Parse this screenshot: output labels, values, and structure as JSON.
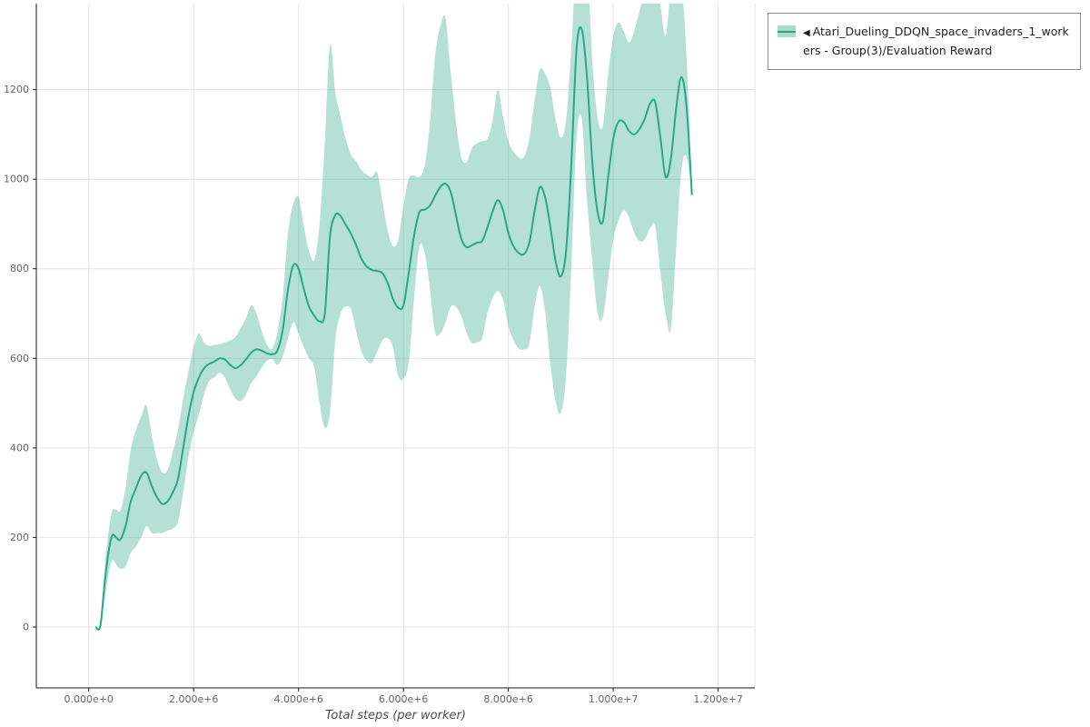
{
  "legend": {
    "marker": "◀",
    "label": "Atari_Dueling_DDQN_space_invaders_1_workers - Group(3)/Evaluation Reward"
  },
  "chart_data": {
    "type": "line",
    "title": "",
    "xlabel": "Total steps (per worker)",
    "ylabel": "",
    "grid": true,
    "legend_position": "top-right",
    "xlim": [
      -1000000,
      12700000
    ],
    "ylim": [
      -136,
      1392
    ],
    "xticks": {
      "values": [
        0,
        2000000,
        4000000,
        6000000,
        8000000,
        10000000,
        12000000
      ],
      "labels": [
        "0.000e+0",
        "2.000e+6",
        "4.000e+6",
        "6.000e+6",
        "8.000e+6",
        "1.000e+7",
        "1.200e+7"
      ]
    },
    "yticks": {
      "values": [
        0,
        200,
        400,
        600,
        800,
        1000,
        1200
      ],
      "labels": [
        "0",
        "200",
        "400",
        "600",
        "800",
        "1000",
        "1200"
      ]
    },
    "colors": {
      "line": "#29a884",
      "band": "#29a884",
      "band_opacity": 0.35,
      "band_solid": "#aadcc8",
      "grid": "#e4e4e4",
      "spine": "#1a1a1a",
      "tick_text": "#666666"
    },
    "series": [
      {
        "name": "Atari_Dueling_DDQN_space_invaders_1_workers - Group(3)/Evaluation Reward",
        "x_steps_millions": [
          0.13,
          0.22,
          0.3,
          0.38,
          0.45,
          0.52,
          0.6,
          0.7,
          0.8,
          0.9,
          1.0,
          1.1,
          1.2,
          1.3,
          1.4,
          1.5,
          1.6,
          1.7,
          1.8,
          1.9,
          2.0,
          2.1,
          2.2,
          2.3,
          2.4,
          2.5,
          2.6,
          2.7,
          2.8,
          2.9,
          3.0,
          3.1,
          3.2,
          3.3,
          3.4,
          3.5,
          3.6,
          3.7,
          3.8,
          3.9,
          4.0,
          4.1,
          4.2,
          4.3,
          4.4,
          4.5,
          4.6,
          4.7,
          4.8,
          4.9,
          5.0,
          5.1,
          5.2,
          5.3,
          5.4,
          5.5,
          5.6,
          5.7,
          5.8,
          5.9,
          6.0,
          6.1,
          6.2,
          6.3,
          6.4,
          6.5,
          6.6,
          6.7,
          6.8,
          6.9,
          7.0,
          7.1,
          7.2,
          7.3,
          7.4,
          7.5,
          7.6,
          7.7,
          7.8,
          7.9,
          8.0,
          8.1,
          8.2,
          8.3,
          8.4,
          8.5,
          8.6,
          8.7,
          8.8,
          8.9,
          9.0,
          9.1,
          9.2,
          9.3,
          9.4,
          9.5,
          9.6,
          9.7,
          9.8,
          9.9,
          10.0,
          10.1,
          10.2,
          10.3,
          10.4,
          10.5,
          10.6,
          10.7,
          10.8,
          10.9,
          11.0,
          11.1,
          11.2,
          11.3,
          11.4,
          11.5
        ],
        "mean": [
          0,
          2,
          95,
          170,
          205,
          200,
          195,
          225,
          280,
          310,
          338,
          345,
          315,
          290,
          275,
          280,
          300,
          330,
          400,
          470,
          525,
          557,
          578,
          588,
          593,
          600,
          597,
          585,
          578,
          585,
          598,
          613,
          620,
          617,
          611,
          609,
          618,
          665,
          755,
          808,
          800,
          755,
          715,
          695,
          683,
          700,
          872,
          920,
          918,
          898,
          878,
          852,
          822,
          805,
          797,
          795,
          790,
          768,
          733,
          713,
          718,
          790,
          872,
          925,
          932,
          940,
          962,
          982,
          990,
          972,
          920,
          868,
          848,
          852,
          858,
          862,
          892,
          928,
          953,
          930,
          880,
          850,
          835,
          833,
          858,
          928,
          982,
          960,
          895,
          818,
          783,
          838,
          1030,
          1290,
          1335,
          1228,
          1040,
          928,
          905,
          1000,
          1090,
          1128,
          1128,
          1108,
          1100,
          1112,
          1135,
          1168,
          1172,
          1092,
          1005,
          1045,
          1158,
          1228,
          1160,
          965
        ],
        "band_low": [
          0,
          2,
          60,
          120,
          150,
          140,
          130,
          135,
          165,
          180,
          200,
          225,
          210,
          210,
          210,
          215,
          220,
          235,
          300,
          380,
          435,
          475,
          520,
          550,
          558,
          568,
          556,
          530,
          510,
          505,
          520,
          545,
          560,
          580,
          595,
          598,
          585,
          605,
          645,
          680,
          655,
          625,
          600,
          580,
          500,
          445,
          480,
          640,
          700,
          715,
          710,
          660,
          615,
          595,
          590,
          615,
          640,
          645,
          625,
          560,
          555,
          590,
          730,
          848,
          838,
          760,
          660,
          655,
          680,
          715,
          715,
          695,
          658,
          635,
          636,
          645,
          700,
          735,
          750,
          730,
          672,
          640,
          622,
          620,
          632,
          715,
          762,
          705,
          590,
          505,
          478,
          560,
          800,
          1090,
          1135,
          955,
          818,
          702,
          692,
          775,
          865,
          908,
          930,
          915,
          880,
          862,
          865,
          890,
          895,
          790,
          700,
          665,
          845,
          1020,
          1050,
          965
        ],
        "band_high": [
          0,
          2,
          130,
          215,
          260,
          262,
          260,
          310,
          395,
          440,
          470,
          495,
          430,
          375,
          345,
          350,
          390,
          440,
          510,
          570,
          625,
          655,
          635,
          628,
          630,
          632,
          636,
          640,
          648,
          668,
          690,
          718,
          700,
          660,
          630,
          622,
          660,
          740,
          880,
          945,
          960,
          895,
          840,
          820,
          900,
          1080,
          1300,
          1195,
          1140,
          1090,
          1055,
          1040,
          1020,
          1010,
          1005,
          1015,
          950,
          885,
          850,
          865,
          940,
          1000,
          1008,
          1005,
          1028,
          1120,
          1270,
          1340,
          1360,
          1240,
          1130,
          1050,
          1038,
          1068,
          1080,
          1085,
          1090,
          1130,
          1200,
          1140,
          1085,
          1062,
          1048,
          1050,
          1090,
          1175,
          1245,
          1235,
          1205,
          1135,
          1093,
          1130,
          1290,
          1500,
          1545,
          1495,
          1268,
          1140,
          1118,
          1230,
          1318,
          1350,
          1330,
          1305,
          1330,
          1375,
          1415,
          1448,
          1452,
          1390,
          1320,
          1430,
          1472,
          1438,
          1270,
          965
        ]
      }
    ]
  }
}
